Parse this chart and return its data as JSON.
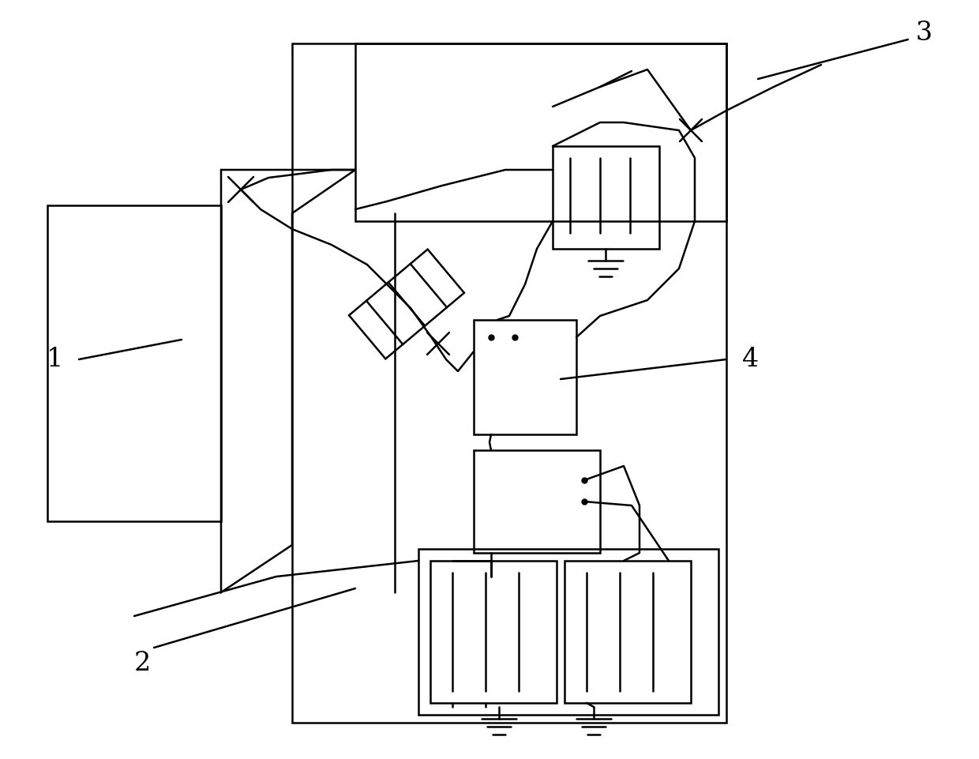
{
  "bg_color": "#ffffff",
  "lc": "#000000",
  "lw": 1.8,
  "fig_width": 12.4,
  "fig_height": 9.61,
  "dpi": 100
}
